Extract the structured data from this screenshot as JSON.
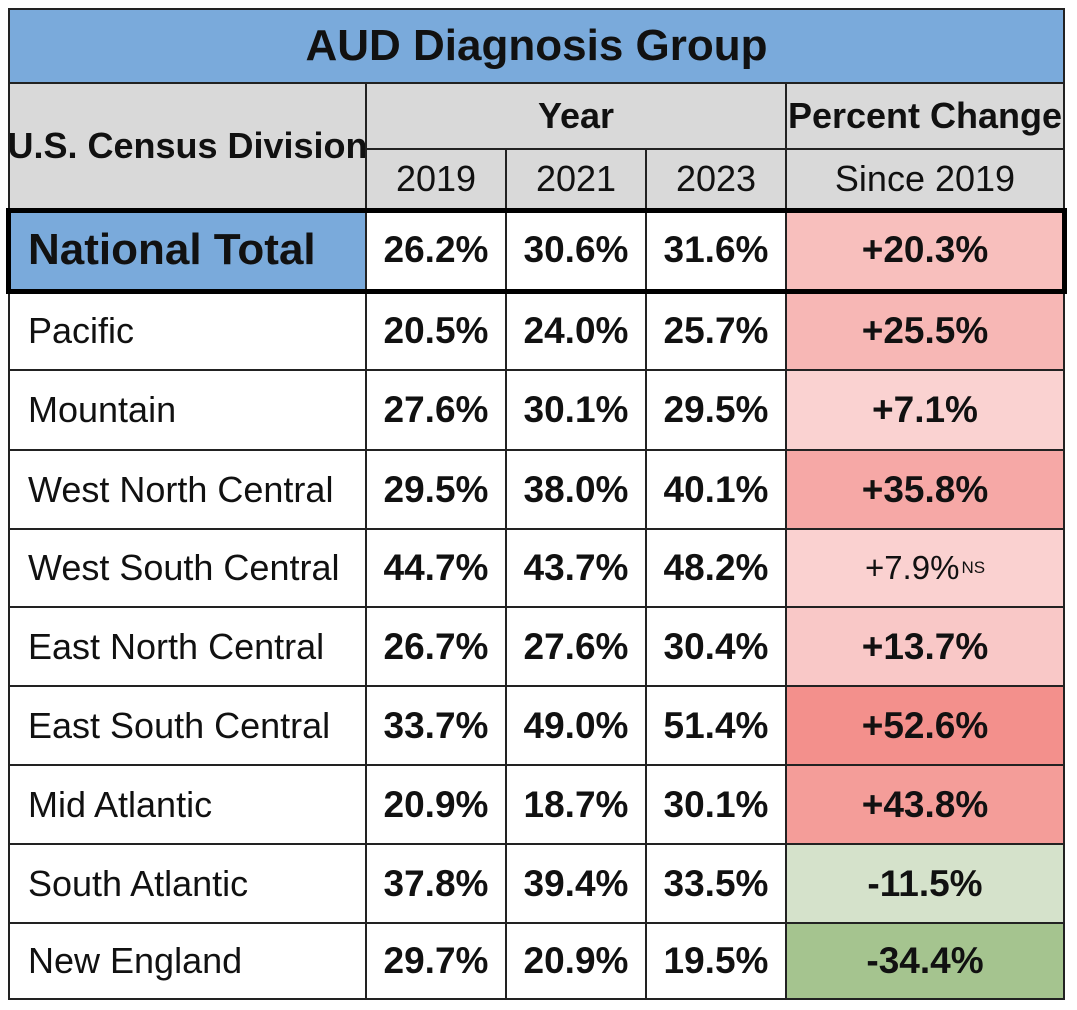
{
  "title": "AUD Diagnosis Group",
  "headers": {
    "division": "U.S. Census Division",
    "year_group": "Year",
    "years": [
      "2019",
      "2021",
      "2023"
    ],
    "change_top": "Percent Change",
    "change_bottom": "Since 2019"
  },
  "colors": {
    "header_blue": "#7aaadb",
    "header_gray": "#d9d9d9",
    "increase_scale_low": "#fbdcdc",
    "increase_scale_high": "#f3908c",
    "decrease_light": "#d5e2cb",
    "decrease_strong": "#a5c48f"
  },
  "chart_data": {
    "type": "table",
    "title": "AUD Diagnosis Group",
    "columns": [
      "U.S. Census Division",
      "2019",
      "2021",
      "2023",
      "Percent Change Since 2019"
    ],
    "rows": [
      {
        "division": "National Total",
        "y2019": "26.2%",
        "y2021": "30.6%",
        "y2023": "31.6%",
        "change": "+20.3%",
        "change_value": 20.3,
        "not_significant": false,
        "highlight": true
      },
      {
        "division": "Pacific",
        "y2019": "20.5%",
        "y2021": "24.0%",
        "y2023": "25.7%",
        "change": "+25.5%",
        "change_value": 25.5,
        "not_significant": false
      },
      {
        "division": "Mountain",
        "y2019": "27.6%",
        "y2021": "30.1%",
        "y2023": "29.5%",
        "change": "+7.1%",
        "change_value": 7.1,
        "not_significant": false
      },
      {
        "division": "West North Central",
        "y2019": "29.5%",
        "y2021": "38.0%",
        "y2023": "40.1%",
        "change": "+35.8%",
        "change_value": 35.8,
        "not_significant": false
      },
      {
        "division": "West South Central",
        "y2019": "44.7%",
        "y2021": "43.7%",
        "y2023": "48.2%",
        "change": "+7.9%",
        "change_value": 7.9,
        "not_significant": true,
        "ns_label": "NS"
      },
      {
        "division": "East North Central",
        "y2019": "26.7%",
        "y2021": "27.6%",
        "y2023": "30.4%",
        "change": "+13.7%",
        "change_value": 13.7,
        "not_significant": false
      },
      {
        "division": "East South Central",
        "y2019": "33.7%",
        "y2021": "49.0%",
        "y2023": "51.4%",
        "change": "+52.6%",
        "change_value": 52.6,
        "not_significant": false
      },
      {
        "division": "Mid Atlantic",
        "y2019": "20.9%",
        "y2021": "18.7%",
        "y2023": "30.1%",
        "change": "+43.8%",
        "change_value": 43.8,
        "not_significant": false
      },
      {
        "division": "South Atlantic",
        "y2019": "37.8%",
        "y2021": "39.4%",
        "y2023": "33.5%",
        "change": "-11.5%",
        "change_value": -11.5,
        "not_significant": false
      },
      {
        "division": "New England",
        "y2019": "29.7%",
        "y2021": "20.9%",
        "y2023": "19.5%",
        "change": "-34.4%",
        "change_value": -34.4,
        "not_significant": false
      }
    ]
  }
}
